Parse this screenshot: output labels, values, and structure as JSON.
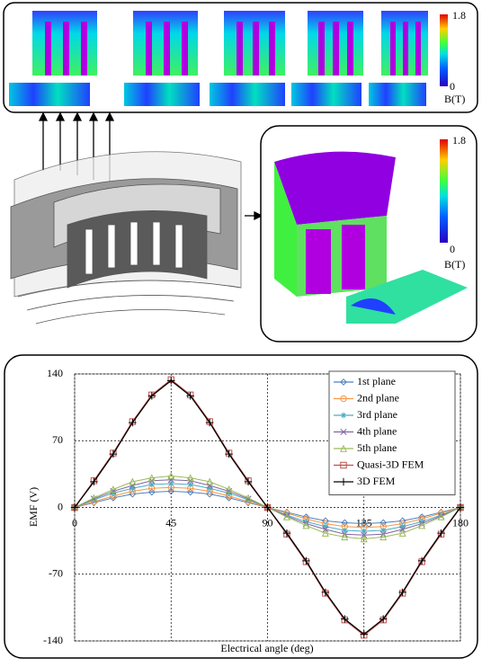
{
  "top_panel": {
    "colorbar_max": "1.8",
    "colorbar_min": "0",
    "colorbar_unit": "B(T)"
  },
  "right_panel": {
    "colorbar_max": "1.8",
    "colorbar_min": "0",
    "colorbar_unit": "B(T)"
  },
  "chart_data": {
    "type": "line",
    "xlabel": "Electrical angle (deg)",
    "ylabel": "EMF (V)",
    "x": [
      0,
      9,
      18,
      27,
      36,
      45,
      54,
      63,
      72,
      81,
      90,
      99,
      108,
      117,
      126,
      135,
      144,
      153,
      162,
      171,
      180
    ],
    "xlim": [
      0,
      180
    ],
    "xticks": [
      0,
      45,
      90,
      135,
      180
    ],
    "ylim": [
      -140,
      140
    ],
    "yticks": [
      -140,
      -70,
      0,
      70,
      140
    ],
    "grid": true,
    "legend": "upper right",
    "series": [
      {
        "name": "1st plane",
        "color": "#4f81bd",
        "marker": "diamond",
        "values": [
          0,
          5,
          10,
          14,
          16,
          17,
          16,
          14,
          10,
          5,
          0,
          -5,
          -10,
          -14,
          -16,
          -17,
          -16,
          -14,
          -10,
          -5,
          0
        ]
      },
      {
        "name": "2nd plane",
        "color": "#f79646",
        "marker": "circle",
        "values": [
          0,
          6,
          12,
          17,
          20,
          21,
          20,
          17,
          12,
          6,
          0,
          -6,
          -12,
          -17,
          -20,
          -21,
          -20,
          -17,
          -12,
          -6,
          0
        ]
      },
      {
        "name": "3rd plane",
        "color": "#4bacc6",
        "marker": "star",
        "values": [
          0,
          8,
          15,
          20,
          24,
          25,
          24,
          20,
          15,
          8,
          0,
          -8,
          -15,
          -20,
          -24,
          -25,
          -24,
          -20,
          -15,
          -8,
          0
        ]
      },
      {
        "name": "4th plane",
        "color": "#8064a2",
        "marker": "cross",
        "values": [
          0,
          9,
          17,
          23,
          28,
          29,
          28,
          23,
          17,
          9,
          0,
          -9,
          -17,
          -23,
          -28,
          -29,
          -28,
          -23,
          -17,
          -9,
          0
        ]
      },
      {
        "name": "5th plane",
        "color": "#9bbb59",
        "marker": "triangle",
        "values": [
          0,
          10,
          19,
          27,
          31,
          33,
          31,
          27,
          19,
          10,
          0,
          -10,
          -19,
          -27,
          -31,
          -33,
          -31,
          -27,
          -19,
          -10,
          0
        ]
      },
      {
        "name": "Quasi-3D FEM",
        "color": "#c0504d",
        "marker": "square",
        "values": [
          0,
          28,
          57,
          90,
          118,
          134,
          118,
          90,
          57,
          28,
          0,
          -28,
          -57,
          -90,
          -118,
          -134,
          -118,
          -90,
          -57,
          -28,
          0
        ]
      },
      {
        "name": "3D FEM",
        "color": "#000000",
        "marker": "plus",
        "values": [
          0,
          27,
          56,
          89,
          117,
          133,
          117,
          89,
          56,
          27,
          0,
          -27,
          -56,
          -89,
          -117,
          -133,
          -117,
          -89,
          -56,
          -27,
          0
        ]
      }
    ]
  }
}
